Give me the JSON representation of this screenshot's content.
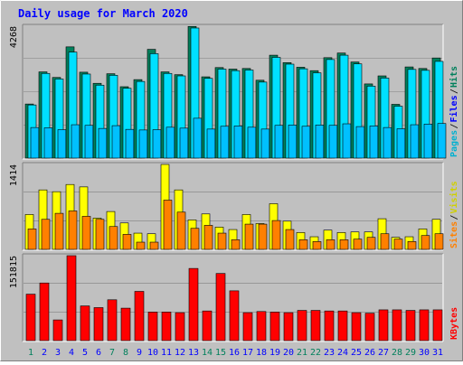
{
  "title": "Daily usage for March 2020",
  "colors": {
    "background": "#c0c0c0",
    "title": "#0000ff",
    "hits": "#00805c",
    "files": "#00e0ff",
    "pages": "#00c0ff",
    "pages_label": "#00b0d0",
    "files_label": "#0000ff",
    "visits": "#ffff00",
    "visits_label": "#d0d000",
    "sites": "#ff8000",
    "kbytes": "#ff0000",
    "weekend_day": "#00805c",
    "weekday": "#0000ff",
    "grid": "#808080"
  },
  "chart_data": [
    {
      "type": "bar",
      "title": "Daily usage for March 2020",
      "categories": [
        "1",
        "2",
        "3",
        "4",
        "5",
        "6",
        "7",
        "8",
        "9",
        "10",
        "11",
        "12",
        "13",
        "14",
        "15",
        "16",
        "17",
        "18",
        "19",
        "20",
        "21",
        "22",
        "23",
        "24",
        "25",
        "26",
        "27",
        "28",
        "29",
        "30",
        "31"
      ],
      "weekend_days": [
        "1",
        "7",
        "8",
        "14",
        "15",
        "21",
        "22",
        "28",
        "29"
      ],
      "y_max_label": "4268",
      "ylim": [
        0,
        4268
      ],
      "y_axis_labels": [
        "Pages",
        "Files",
        "Hits"
      ],
      "grid": true,
      "series": [
        {
          "name": "Hits",
          "color": "#00805c",
          "values": [
            1750,
            2790,
            2610,
            3600,
            2780,
            2420,
            2730,
            2310,
            2540,
            3520,
            2790,
            2700,
            4260,
            2630,
            2930,
            2880,
            2900,
            2520,
            3330,
            3090,
            2940,
            2830,
            3250,
            3400,
            3110,
            2400,
            2660,
            1740,
            2950,
            2900,
            3240
          ]
        },
        {
          "name": "Files",
          "color": "#00e0ff",
          "values": [
            1720,
            2740,
            2560,
            3430,
            2720,
            2360,
            2680,
            2260,
            2480,
            3380,
            2740,
            2660,
            4210,
            2580,
            2880,
            2830,
            2850,
            2460,
            3260,
            3040,
            2890,
            2760,
            3190,
            3330,
            3050,
            2330,
            2590,
            1680,
            2870,
            2840,
            3130
          ]
        },
        {
          "name": "Pages",
          "color": "#00c0ff",
          "values": [
            990,
            980,
            920,
            1080,
            1060,
            960,
            1050,
            930,
            910,
            920,
            1000,
            970,
            1290,
            940,
            1030,
            1040,
            1000,
            940,
            1060,
            1070,
            1030,
            1070,
            1060,
            1110,
            1020,
            1040,
            990,
            950,
            1080,
            1100,
            1120
          ]
        }
      ]
    },
    {
      "type": "bar",
      "categories": [
        "1",
        "2",
        "3",
        "4",
        "5",
        "6",
        "7",
        "8",
        "9",
        "10",
        "11",
        "12",
        "13",
        "14",
        "15",
        "16",
        "17",
        "18",
        "19",
        "20",
        "21",
        "22",
        "23",
        "24",
        "25",
        "26",
        "27",
        "28",
        "29",
        "30",
        "31"
      ],
      "y_max_label": "1414",
      "ylim": [
        0,
        1414
      ],
      "y_axis_labels": [
        "Sites",
        "Visits"
      ],
      "grid": true,
      "series": [
        {
          "name": "Visits",
          "color": "#ffff00",
          "values": [
            580,
            990,
            960,
            1080,
            1040,
            520,
            630,
            440,
            270,
            260,
            1414,
            990,
            490,
            590,
            370,
            330,
            580,
            430,
            760,
            470,
            280,
            210,
            320,
            280,
            290,
            290,
            510,
            200,
            210,
            340,
            500
          ]
        },
        {
          "name": "Sites",
          "color": "#ff8000",
          "values": [
            340,
            500,
            600,
            640,
            550,
            500,
            380,
            250,
            120,
            120,
            820,
            620,
            350,
            400,
            270,
            160,
            420,
            420,
            480,
            330,
            160,
            130,
            160,
            160,
            170,
            200,
            260,
            170,
            130,
            230,
            260
          ]
        }
      ]
    },
    {
      "type": "bar",
      "categories": [
        "1",
        "2",
        "3",
        "4",
        "5",
        "6",
        "7",
        "8",
        "9",
        "10",
        "11",
        "12",
        "13",
        "14",
        "15",
        "16",
        "17",
        "18",
        "19",
        "20",
        "21",
        "22",
        "23",
        "24",
        "25",
        "26",
        "27",
        "28",
        "29",
        "30",
        "31"
      ],
      "y_max_label": "151815",
      "ylim": [
        0,
        151815
      ],
      "y_axis_labels": [
        "KBytes"
      ],
      "grid": true,
      "series": [
        {
          "name": "KBytes",
          "color": "#ff0000",
          "values": [
            83000,
            103000,
            37000,
            151815,
            62000,
            59000,
            73000,
            58000,
            88000,
            51000,
            51000,
            50000,
            129000,
            53000,
            120000,
            89000,
            50000,
            52000,
            51000,
            50000,
            54000,
            54000,
            53000,
            53000,
            50000,
            49000,
            55000,
            55000,
            54000,
            55000,
            55000
          ]
        }
      ]
    }
  ]
}
